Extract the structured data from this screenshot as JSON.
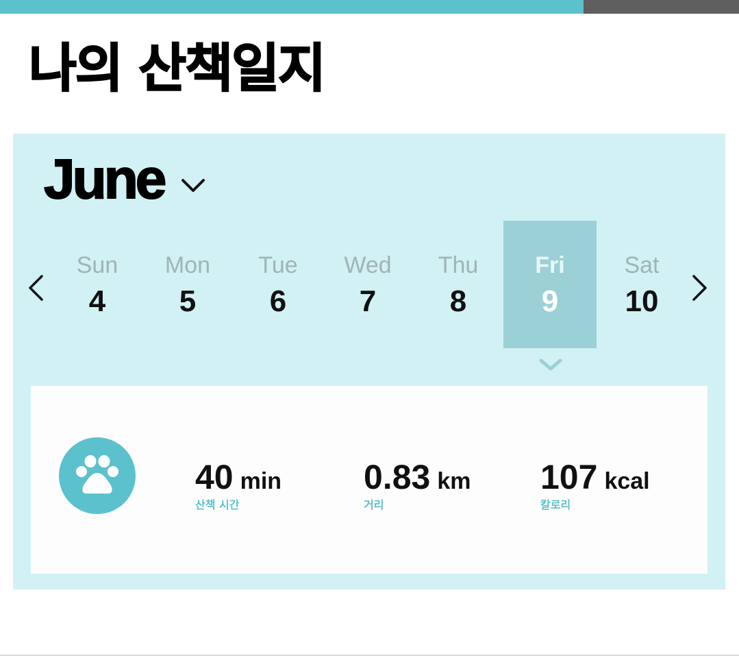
{
  "progress": {
    "percent": 79,
    "fill_color": "#5bc2cd",
    "track_color": "#5f5f5f"
  },
  "page": {
    "title": "나의 산책일지"
  },
  "calendar": {
    "month": "June",
    "prev_icon": "chevron-left-icon",
    "next_icon": "chevron-right-icon",
    "days": [
      {
        "name": "Sun",
        "number": "4"
      },
      {
        "name": "Mon",
        "number": "5"
      },
      {
        "name": "Tue",
        "number": "6"
      },
      {
        "name": "Wed",
        "number": "7"
      },
      {
        "name": "Thu",
        "number": "8"
      },
      {
        "name": "Fri",
        "number": "9",
        "selected": true
      },
      {
        "name": "Sat",
        "number": "10"
      }
    ],
    "panel_color": "#d2f1f4",
    "selected_color": "#9bd0d6"
  },
  "stats": {
    "icon": "paw-icon",
    "time": {
      "value": "40",
      "unit": "min",
      "label": "산책 시간"
    },
    "distance": {
      "value": "0.83",
      "unit": "km",
      "label": "거리"
    },
    "calories": {
      "value": "107",
      "unit": "kcal",
      "label": "칼로리"
    },
    "accent_color": "#5bc2cd"
  }
}
